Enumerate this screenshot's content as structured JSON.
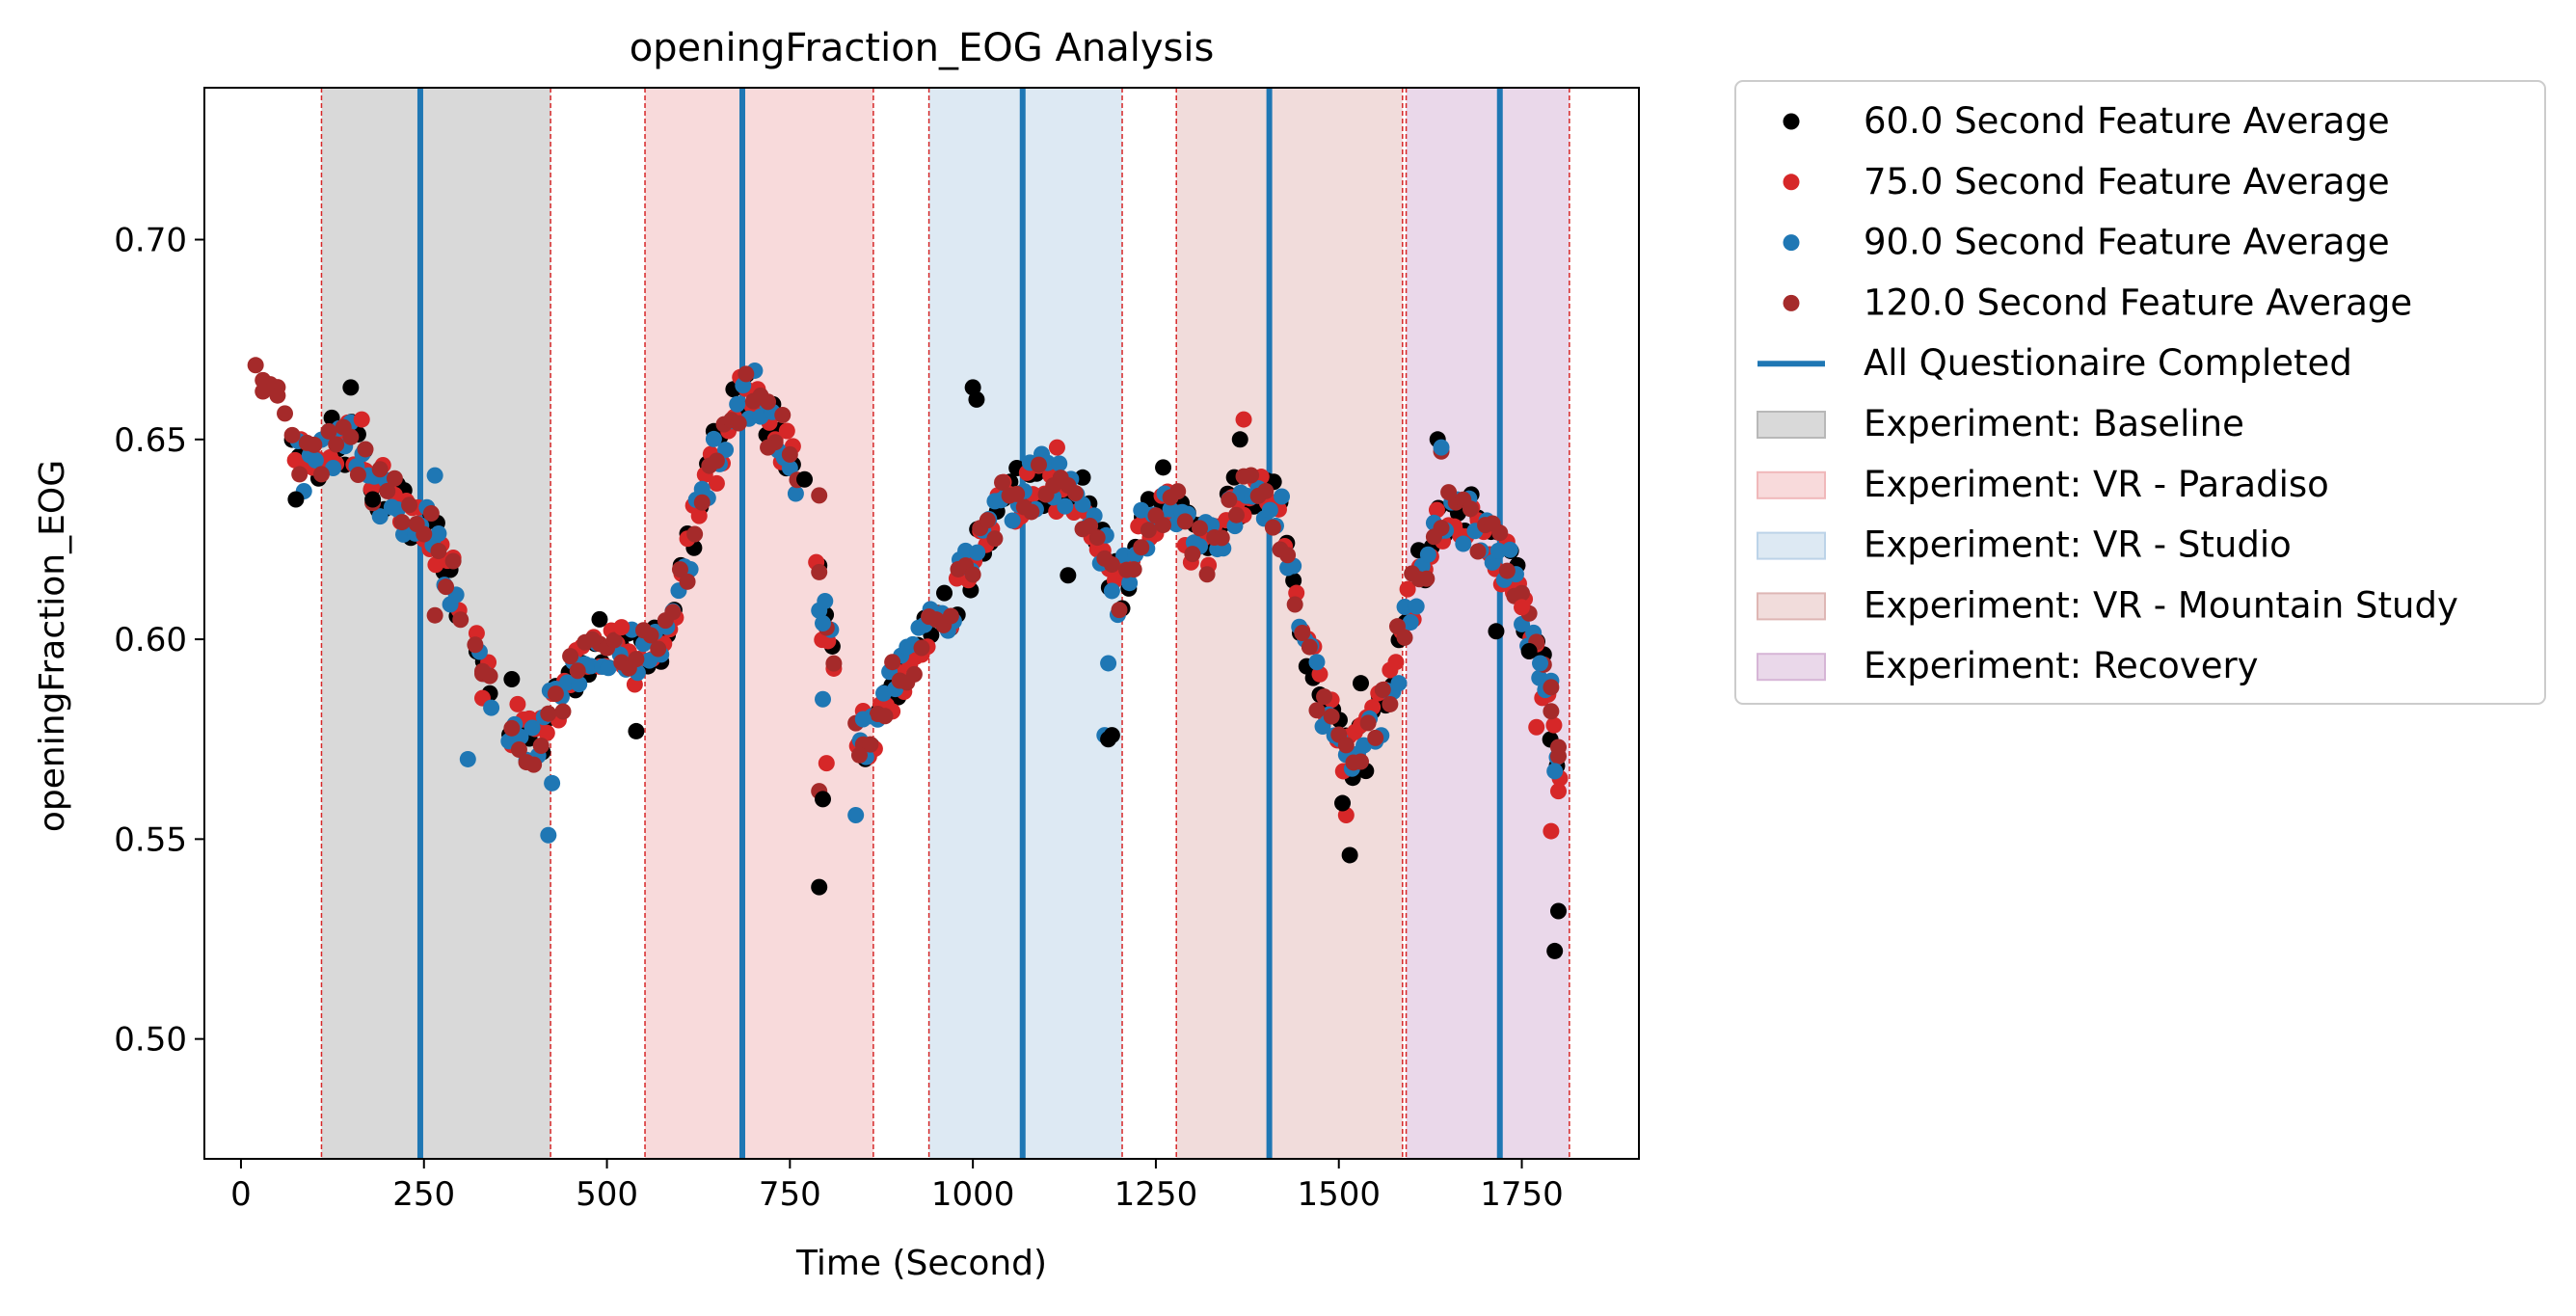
{
  "chart_data": {
    "type": "scatter",
    "title": "openingFraction_EOG Analysis",
    "xlabel": "Time (Second)",
    "ylabel": "openingFraction_EOG",
    "xlim": [
      -50,
      1910
    ],
    "ylim": [
      0.47,
      0.738
    ],
    "x_ticks": [
      0,
      250,
      500,
      750,
      1000,
      1250,
      1500,
      1750
    ],
    "x_tick_labels": [
      "0",
      "250",
      "500",
      "750",
      "1000",
      "1250",
      "1500",
      "1750"
    ],
    "y_ticks": [
      0.5,
      0.55,
      0.6,
      0.65,
      0.7
    ],
    "y_tick_labels": [
      "0.50",
      "0.55",
      "0.60",
      "0.65",
      "0.70"
    ],
    "grid": false,
    "legend_position": "outside-right",
    "series_style": [
      {
        "name": "60.0 Second Feature Average",
        "color": "#000000",
        "marker": "dot"
      },
      {
        "name": "75.0 Second Feature Average",
        "color": "#d62728",
        "marker": "dot"
      },
      {
        "name": "90.0 Second Feature Average",
        "color": "#1f77b4",
        "marker": "dot"
      },
      {
        "name": "120.0 Second Feature Average",
        "color": "#a52a2a",
        "marker": "dot"
      }
    ],
    "questionnaire": {
      "name": "All Questionaire Completed",
      "color": "#1f77b4",
      "x": [
        245,
        685,
        1068,
        1405,
        1720
      ]
    },
    "phases": [
      {
        "name": "Experiment: Baseline",
        "color": "#d9d9d9",
        "start": 110,
        "end": 423
      },
      {
        "name": "Experiment: VR - Paradiso",
        "color": "#f8dadb",
        "start": 552,
        "end": 864
      },
      {
        "name": "Experiment: VR - Studio",
        "color": "#dde9f3",
        "start": 940,
        "end": 1204
      },
      {
        "name": "Experiment: VR - Mountain Study",
        "color": "#f1dcdb",
        "start": 1278,
        "end": 1587
      },
      {
        "name": "Experiment: Recovery",
        "color": "#ead8ea",
        "start": 1592,
        "end": 1815
      }
    ],
    "boundaries": [
      110,
      423,
      552,
      864,
      940,
      1204,
      1278,
      1587,
      1592,
      1815
    ],
    "trend": [
      [
        20,
        0.662
      ],
      [
        45,
        0.66
      ],
      [
        70,
        0.648
      ],
      [
        95,
        0.642
      ],
      [
        115,
        0.648
      ],
      [
        140,
        0.65
      ],
      [
        165,
        0.647
      ],
      [
        190,
        0.638
      ],
      [
        220,
        0.633
      ],
      [
        250,
        0.63
      ],
      [
        280,
        0.62
      ],
      [
        310,
        0.6
      ],
      [
        340,
        0.588
      ],
      [
        370,
        0.578
      ],
      [
        400,
        0.575
      ],
      [
        420,
        0.578
      ],
      [
        440,
        0.588
      ],
      [
        460,
        0.592
      ],
      [
        490,
        0.596
      ],
      [
        520,
        0.597
      ],
      [
        545,
        0.595
      ],
      [
        560,
        0.598
      ],
      [
        580,
        0.603
      ],
      [
        600,
        0.615
      ],
      [
        620,
        0.628
      ],
      [
        640,
        0.642
      ],
      [
        660,
        0.652
      ],
      [
        680,
        0.66
      ],
      [
        700,
        0.661
      ],
      [
        720,
        0.656
      ],
      [
        740,
        0.65
      ],
      [
        760,
        0.64
      ],
      [
        780,
        0.622
      ],
      [
        800,
        0.6
      ],
      [
        820,
        0.582
      ],
      [
        840,
        0.577
      ],
      [
        860,
        0.575
      ],
      [
        880,
        0.585
      ],
      [
        900,
        0.592
      ],
      [
        925,
        0.598
      ],
      [
        950,
        0.603
      ],
      [
        980,
        0.612
      ],
      [
        1010,
        0.625
      ],
      [
        1040,
        0.633
      ],
      [
        1070,
        0.638
      ],
      [
        1100,
        0.64
      ],
      [
        1130,
        0.638
      ],
      [
        1160,
        0.632
      ],
      [
        1185,
        0.62
      ],
      [
        1200,
        0.612
      ],
      [
        1220,
        0.62
      ],
      [
        1240,
        0.63
      ],
      [
        1260,
        0.634
      ],
      [
        1280,
        0.63
      ],
      [
        1300,
        0.624
      ],
      [
        1320,
        0.622
      ],
      [
        1340,
        0.628
      ],
      [
        1360,
        0.636
      ],
      [
        1380,
        0.64
      ],
      [
        1400,
        0.637
      ],
      [
        1420,
        0.63
      ],
      [
        1440,
        0.612
      ],
      [
        1460,
        0.595
      ],
      [
        1480,
        0.584
      ],
      [
        1500,
        0.574
      ],
      [
        1520,
        0.57
      ],
      [
        1540,
        0.575
      ],
      [
        1560,
        0.584
      ],
      [
        1580,
        0.596
      ],
      [
        1600,
        0.61
      ],
      [
        1620,
        0.622
      ],
      [
        1640,
        0.63
      ],
      [
        1660,
        0.632
      ],
      [
        1680,
        0.63
      ],
      [
        1700,
        0.627
      ],
      [
        1720,
        0.622
      ],
      [
        1740,
        0.614
      ],
      [
        1760,
        0.604
      ],
      [
        1780,
        0.59
      ],
      [
        1800,
        0.57
      ]
    ],
    "notable_points": [
      [
        75,
        0.635,
        0
      ],
      [
        180,
        0.635,
        0
      ],
      [
        165,
        0.655,
        1
      ],
      [
        150,
        0.663,
        0
      ],
      [
        265,
        0.606,
        3
      ],
      [
        265,
        0.641,
        2
      ],
      [
        310,
        0.57,
        2
      ],
      [
        330,
        0.592,
        3
      ],
      [
        370,
        0.59,
        0
      ],
      [
        420,
        0.551,
        2
      ],
      [
        425,
        0.564,
        2
      ],
      [
        490,
        0.605,
        0
      ],
      [
        520,
        0.603,
        1
      ],
      [
        540,
        0.577,
        0
      ],
      [
        720,
        0.648,
        3
      ],
      [
        770,
        0.64,
        0
      ],
      [
        790,
        0.636,
        3
      ],
      [
        795,
        0.604,
        2
      ],
      [
        795,
        0.585,
        2
      ],
      [
        790,
        0.562,
        3
      ],
      [
        800,
        0.569,
        1
      ],
      [
        790,
        0.538,
        0
      ],
      [
        795,
        0.56,
        0
      ],
      [
        840,
        0.556,
        2
      ],
      [
        845,
        0.571,
        3
      ],
      [
        850,
        0.58,
        2
      ],
      [
        1000,
        0.663,
        0
      ],
      [
        1005,
        0.66,
        0
      ],
      [
        1115,
        0.648,
        1
      ],
      [
        1130,
        0.616,
        0
      ],
      [
        1180,
        0.576,
        2
      ],
      [
        1190,
        0.576,
        0
      ],
      [
        1185,
        0.575,
        0
      ],
      [
        1185,
        0.594,
        2
      ],
      [
        1260,
        0.643,
        0
      ],
      [
        1365,
        0.65,
        0
      ],
      [
        1370,
        0.655,
        1
      ],
      [
        1515,
        0.546,
        0
      ],
      [
        1510,
        0.556,
        1
      ],
      [
        1505,
        0.559,
        0
      ],
      [
        1530,
        0.589,
        0
      ],
      [
        1635,
        0.65,
        0
      ],
      [
        1640,
        0.647,
        3
      ],
      [
        1640,
        0.648,
        2
      ],
      [
        1715,
        0.602,
        0
      ],
      [
        1760,
        0.597,
        0
      ],
      [
        1770,
        0.578,
        1
      ],
      [
        1790,
        0.588,
        3
      ],
      [
        1790,
        0.552,
        1
      ],
      [
        1795,
        0.567,
        2
      ],
      [
        1800,
        0.562,
        1
      ],
      [
        1795,
        0.522,
        0
      ],
      [
        1800,
        0.532,
        0
      ],
      [
        1800,
        0.573,
        3
      ],
      [
        1750,
        0.608,
        1
      ],
      [
        1775,
        0.594,
        2
      ],
      [
        30,
        0.662,
        3
      ],
      [
        50,
        0.661,
        3
      ]
    ]
  },
  "legend": {
    "items": [
      {
        "label": "60.0 Second Feature Average",
        "kind": "dot",
        "color": "#000000"
      },
      {
        "label": "75.0 Second Feature Average",
        "kind": "dot",
        "color": "#d62728"
      },
      {
        "label": "90.0 Second Feature Average",
        "kind": "dot",
        "color": "#1f77b4"
      },
      {
        "label": "120.0 Second Feature Average",
        "kind": "dot",
        "color": "#a52a2a"
      },
      {
        "label": "All Questionaire Completed",
        "kind": "line",
        "color": "#1f77b4"
      },
      {
        "label": "Experiment: Baseline",
        "kind": "patch",
        "color": "#d9d9d9",
        "edge": "#b8b8b8"
      },
      {
        "label": "Experiment: VR - Paradiso",
        "kind": "patch",
        "color": "#f8dadb",
        "edge": "#f0b8ba"
      },
      {
        "label": "Experiment: VR - Studio",
        "kind": "patch",
        "color": "#dde9f3",
        "edge": "#bcd3e8"
      },
      {
        "label": "Experiment: VR - Mountain Study",
        "kind": "patch",
        "color": "#f1dcdb",
        "edge": "#deb6b4"
      },
      {
        "label": "Experiment: Recovery",
        "kind": "patch",
        "color": "#ead8ea",
        "edge": "#d6b5d6"
      }
    ]
  }
}
